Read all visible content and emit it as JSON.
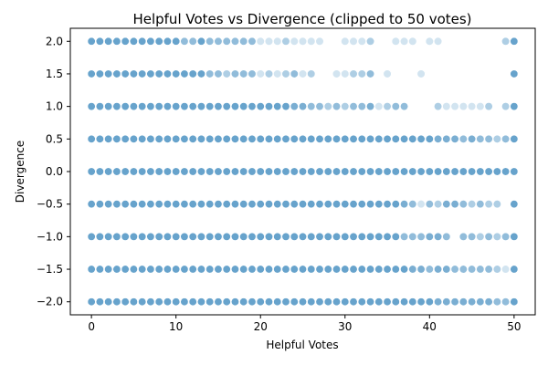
{
  "chart_data": {
    "type": "scatter",
    "title": "Helpful Votes vs Divergence (clipped to 50 votes)",
    "xlabel": "Helpful Votes",
    "ylabel": "Divergence",
    "xlim": [
      -2.5,
      52.5
    ],
    "ylim": [
      -2.2,
      2.2
    ],
    "xticks": [
      0,
      10,
      20,
      30,
      40,
      50
    ],
    "xtick_labels": [
      "0",
      "10",
      "20",
      "30",
      "40",
      "50"
    ],
    "yticks": [
      -2.0,
      -1.5,
      -1.0,
      -0.5,
      0.0,
      0.5,
      1.0,
      1.5,
      2.0
    ],
    "ytick_labels": [
      "−2.0",
      "−1.5",
      "−1.0",
      "−0.5",
      "0.0",
      "0.5",
      "1.0",
      "1.5",
      "2.0"
    ],
    "grid": false,
    "marker_color": "#1f77b4",
    "marker_edge_color": "#ffffff",
    "marker_alpha": 0.2,
    "points_note": "each point is one review; darker dots indicate overlapping reviews",
    "rows": [
      {
        "y": 2.0,
        "x": [
          0,
          1,
          2,
          3,
          4,
          5,
          6,
          7,
          8,
          9,
          10,
          11,
          12,
          13,
          14,
          15,
          16,
          17,
          18,
          19,
          20,
          21,
          22,
          23,
          24,
          25,
          26,
          27,
          30,
          31,
          32,
          33,
          36,
          37,
          38,
          40,
          41,
          49,
          50
        ],
        "depth": [
          5,
          5,
          5,
          5,
          5,
          5,
          5,
          5,
          5,
          5,
          5,
          3,
          3,
          5,
          3,
          3,
          3,
          3,
          3,
          3,
          1,
          1,
          1,
          2,
          1,
          1,
          1,
          1,
          1,
          1,
          1,
          2,
          1,
          1,
          1,
          1,
          1,
          2,
          5
        ]
      },
      {
        "y": 1.5,
        "x": [
          0,
          1,
          2,
          3,
          4,
          5,
          6,
          7,
          8,
          9,
          10,
          11,
          12,
          13,
          14,
          15,
          16,
          17,
          18,
          19,
          20,
          21,
          22,
          23,
          24,
          25,
          26,
          29,
          30,
          31,
          32,
          33,
          35,
          39,
          50
        ],
        "depth": [
          5,
          5,
          5,
          5,
          5,
          5,
          5,
          5,
          5,
          5,
          5,
          5,
          5,
          5,
          3,
          3,
          2,
          3,
          3,
          3,
          1,
          2,
          1,
          2,
          3,
          1,
          2,
          1,
          1,
          2,
          2,
          3,
          1,
          1,
          5
        ]
      },
      {
        "y": 1.0,
        "x": [
          0,
          1,
          2,
          3,
          4,
          5,
          6,
          7,
          8,
          9,
          10,
          11,
          12,
          13,
          14,
          15,
          16,
          17,
          18,
          19,
          20,
          21,
          22,
          23,
          24,
          25,
          26,
          27,
          28,
          29,
          30,
          31,
          32,
          33,
          34,
          35,
          36,
          37,
          41,
          42,
          43,
          44,
          45,
          46,
          47,
          49,
          50
        ],
        "depth": [
          5,
          5,
          5,
          5,
          5,
          5,
          5,
          5,
          5,
          5,
          5,
          5,
          5,
          5,
          5,
          5,
          5,
          5,
          5,
          5,
          5,
          5,
          5,
          5,
          4,
          4,
          3,
          3,
          2,
          3,
          2,
          3,
          3,
          4,
          1,
          2,
          3,
          3,
          2,
          1,
          1,
          1,
          1,
          1,
          2,
          2,
          5
        ]
      },
      {
        "y": 0.5,
        "x": [
          0,
          1,
          2,
          3,
          4,
          5,
          6,
          7,
          8,
          9,
          10,
          11,
          12,
          13,
          14,
          15,
          16,
          17,
          18,
          19,
          20,
          21,
          22,
          23,
          24,
          25,
          26,
          27,
          28,
          29,
          30,
          31,
          32,
          33,
          34,
          35,
          36,
          37,
          38,
          39,
          40,
          41,
          42,
          43,
          44,
          45,
          46,
          47,
          48,
          49,
          50
        ],
        "depth": [
          5,
          5,
          5,
          5,
          5,
          5,
          5,
          5,
          5,
          5,
          5,
          5,
          5,
          5,
          5,
          5,
          5,
          5,
          5,
          5,
          5,
          5,
          5,
          5,
          5,
          5,
          5,
          5,
          5,
          5,
          5,
          5,
          5,
          5,
          5,
          5,
          5,
          5,
          5,
          5,
          5,
          4,
          4,
          4,
          3,
          4,
          3,
          3,
          2,
          3,
          5
        ]
      },
      {
        "y": 0.0,
        "x": [
          0,
          1,
          2,
          3,
          4,
          5,
          6,
          7,
          8,
          9,
          10,
          11,
          12,
          13,
          14,
          15,
          16,
          17,
          18,
          19,
          20,
          21,
          22,
          23,
          24,
          25,
          26,
          27,
          28,
          29,
          30,
          31,
          32,
          33,
          34,
          35,
          36,
          37,
          38,
          39,
          40,
          41,
          42,
          43,
          44,
          45,
          46,
          47,
          48,
          49,
          50
        ],
        "depth": [
          5,
          5,
          5,
          5,
          5,
          5,
          5,
          5,
          5,
          5,
          5,
          5,
          5,
          5,
          5,
          5,
          5,
          5,
          5,
          5,
          5,
          5,
          5,
          5,
          5,
          5,
          5,
          5,
          5,
          5,
          5,
          5,
          5,
          5,
          5,
          5,
          5,
          5,
          5,
          5,
          5,
          5,
          5,
          5,
          5,
          5,
          5,
          5,
          5,
          5,
          5
        ]
      },
      {
        "y": -0.5,
        "x": [
          0,
          1,
          2,
          3,
          4,
          5,
          6,
          7,
          8,
          9,
          10,
          11,
          12,
          13,
          14,
          15,
          16,
          17,
          18,
          19,
          20,
          21,
          22,
          23,
          24,
          25,
          26,
          27,
          28,
          29,
          30,
          31,
          32,
          33,
          34,
          35,
          36,
          37,
          38,
          39,
          40,
          41,
          42,
          43,
          44,
          45,
          46,
          47,
          48,
          50
        ],
        "depth": [
          5,
          5,
          5,
          5,
          5,
          5,
          5,
          5,
          5,
          5,
          5,
          5,
          5,
          5,
          5,
          5,
          5,
          5,
          5,
          5,
          5,
          5,
          5,
          5,
          5,
          5,
          5,
          5,
          5,
          5,
          5,
          5,
          5,
          5,
          5,
          5,
          5,
          4,
          3,
          1,
          3,
          2,
          4,
          4,
          3,
          2,
          3,
          2,
          2,
          5
        ]
      },
      {
        "y": -1.0,
        "x": [
          0,
          1,
          2,
          3,
          4,
          5,
          6,
          7,
          8,
          9,
          10,
          11,
          12,
          13,
          14,
          15,
          16,
          17,
          18,
          19,
          20,
          21,
          22,
          23,
          24,
          25,
          26,
          27,
          28,
          29,
          30,
          31,
          32,
          33,
          34,
          35,
          36,
          37,
          38,
          39,
          40,
          41,
          42,
          44,
          45,
          46,
          47,
          48,
          49,
          50
        ],
        "depth": [
          5,
          5,
          5,
          5,
          5,
          5,
          5,
          5,
          5,
          5,
          5,
          5,
          5,
          5,
          5,
          5,
          5,
          5,
          5,
          5,
          5,
          5,
          5,
          5,
          5,
          5,
          5,
          5,
          5,
          5,
          5,
          5,
          5,
          5,
          5,
          5,
          5,
          3,
          3,
          3,
          4,
          4,
          3,
          3,
          3,
          2,
          3,
          2,
          3,
          5
        ]
      },
      {
        "y": -1.5,
        "x": [
          0,
          1,
          2,
          3,
          4,
          5,
          6,
          7,
          8,
          9,
          10,
          11,
          12,
          13,
          14,
          15,
          16,
          17,
          18,
          19,
          20,
          21,
          22,
          23,
          24,
          25,
          26,
          27,
          28,
          29,
          30,
          31,
          32,
          33,
          34,
          35,
          36,
          37,
          38,
          39,
          40,
          41,
          42,
          43,
          44,
          45,
          46,
          47,
          48,
          49,
          50
        ],
        "depth": [
          5,
          5,
          5,
          5,
          5,
          5,
          5,
          5,
          5,
          5,
          5,
          5,
          5,
          5,
          5,
          5,
          5,
          5,
          5,
          5,
          5,
          5,
          5,
          5,
          5,
          5,
          5,
          5,
          5,
          5,
          5,
          5,
          5,
          5,
          5,
          5,
          5,
          5,
          4,
          4,
          3,
          4,
          4,
          3,
          3,
          3,
          3,
          3,
          2,
          1,
          5
        ]
      },
      {
        "y": -2.0,
        "x": [
          0,
          1,
          2,
          3,
          4,
          5,
          6,
          7,
          8,
          9,
          10,
          11,
          12,
          13,
          14,
          15,
          16,
          17,
          18,
          19,
          20,
          21,
          22,
          23,
          24,
          25,
          26,
          27,
          28,
          29,
          30,
          31,
          32,
          33,
          34,
          35,
          36,
          37,
          38,
          39,
          40,
          41,
          42,
          43,
          44,
          45,
          46,
          47,
          48,
          49,
          50
        ],
        "depth": [
          5,
          5,
          5,
          5,
          5,
          5,
          5,
          5,
          5,
          5,
          5,
          5,
          5,
          5,
          5,
          5,
          5,
          5,
          5,
          5,
          5,
          5,
          5,
          5,
          5,
          5,
          5,
          5,
          5,
          5,
          5,
          5,
          5,
          5,
          5,
          5,
          5,
          5,
          5,
          5,
          5,
          4,
          4,
          4,
          4,
          4,
          4,
          4,
          3,
          3,
          5
        ]
      }
    ]
  }
}
